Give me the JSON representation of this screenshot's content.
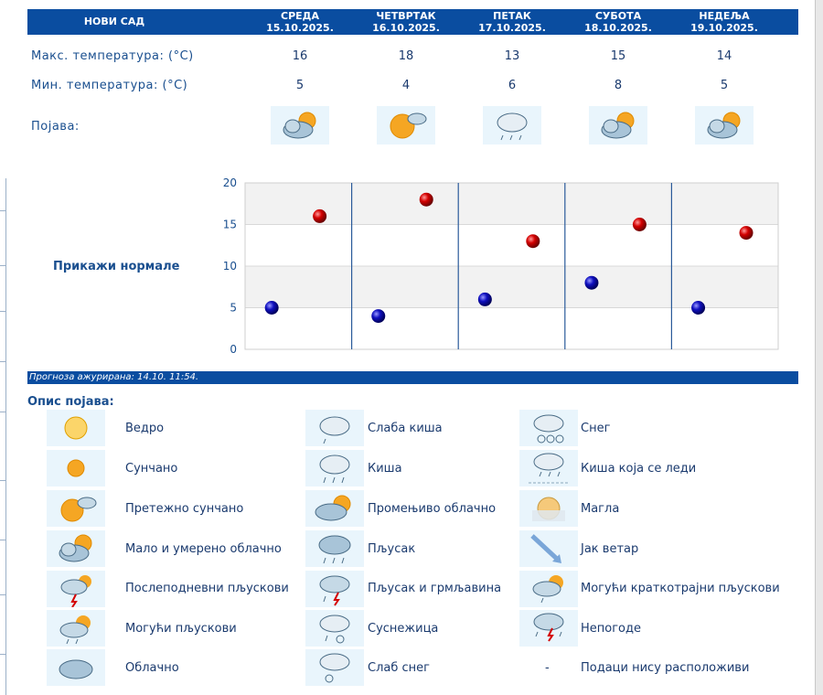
{
  "city": "НОВИ САД",
  "days": [
    {
      "name": "СРЕДА",
      "date": "15.10.2025.",
      "max": "16",
      "min": "5",
      "icon": "partly-cloudy-icon"
    },
    {
      "name": "ЧЕТВРТАК",
      "date": "16.10.2025.",
      "max": "18",
      "min": "4",
      "icon": "mostly-sunny-icon"
    },
    {
      "name": "ПЕТАК",
      "date": "17.10.2025.",
      "max": "13",
      "min": "6",
      "icon": "light-rain-icon"
    },
    {
      "name": "СУБОТА",
      "date": "18.10.2025.",
      "max": "15",
      "min": "8",
      "icon": "partly-cloudy-icon"
    },
    {
      "name": "НЕДЕЉА",
      "date": "19.10.2025.",
      "max": "14",
      "min": "5",
      "icon": "partly-cloudy-icon"
    }
  ],
  "labels": {
    "max_temp": "Макс. температура: (°C)",
    "min_temp": "Мин. температура: (°C)",
    "phenomenon": "Појава:",
    "show_normals": "Прикажи нормале",
    "legend_title": "Опис појава:"
  },
  "updated": "Прогноза ажурирана:  14.10. 11:54.",
  "chart_data": {
    "type": "scatter",
    "categories": [
      "СРЕДА",
      "ЧЕТВРТАК",
      "ПЕТАК",
      "СУБОТА",
      "НЕДЕЉА"
    ],
    "series": [
      {
        "values": [
          16,
          18,
          13,
          15,
          14
        ],
        "color": "#d40000"
      },
      {
        "values": [
          5,
          4,
          6,
          8,
          5
        ],
        "color": "#1010c0"
      }
    ],
    "ylim": [
      0,
      20
    ],
    "yticks": [
      "0",
      "5",
      "10",
      "15",
      "20"
    ],
    "grid": true
  },
  "legend": {
    "col1": [
      {
        "text": "Ведро",
        "icon": "clear-sky-icon"
      },
      {
        "text": "Сунчано",
        "icon": "sunny-icon"
      },
      {
        "text": "Претежно сунчано",
        "icon": "mostly-sunny-icon"
      },
      {
        "text": "Мало и умерено облачно",
        "icon": "partly-cloudy-icon"
      },
      {
        "text": "Послеподневни пљускови",
        "icon": "afternoon-showers-icon"
      },
      {
        "text": "Могући пљускови",
        "icon": "possible-showers-icon"
      },
      {
        "text": "Облачно",
        "icon": "cloudy-icon"
      }
    ],
    "col2": [
      {
        "text": "Слаба киша",
        "icon": "light-rain-icon"
      },
      {
        "text": "Киша",
        "icon": "rain-icon"
      },
      {
        "text": "Промењиво облачно",
        "icon": "variable-cloudy-icon"
      },
      {
        "text": "Пљусак",
        "icon": "shower-icon"
      },
      {
        "text": "Пљусак и грмљавина",
        "icon": "thunder-shower-icon"
      },
      {
        "text": "Суснежица",
        "icon": "sleet-icon"
      },
      {
        "text": "Слаб снег",
        "icon": "light-snow-icon"
      }
    ],
    "col3": [
      {
        "text": "Снег",
        "icon": "snow-icon"
      },
      {
        "text": "Киша која се леди",
        "icon": "freezing-rain-icon"
      },
      {
        "text": "Магла",
        "icon": "fog-icon"
      },
      {
        "text": "Јак ветар",
        "icon": "strong-wind-icon"
      },
      {
        "text": "Могући краткотрајни пљускови",
        "icon": "possible-brief-showers-icon"
      },
      {
        "text": "Непогоде",
        "icon": "storms-icon"
      },
      {
        "text": "Подаци нису расположиви",
        "icon": "",
        "dash": "-"
      }
    ]
  }
}
